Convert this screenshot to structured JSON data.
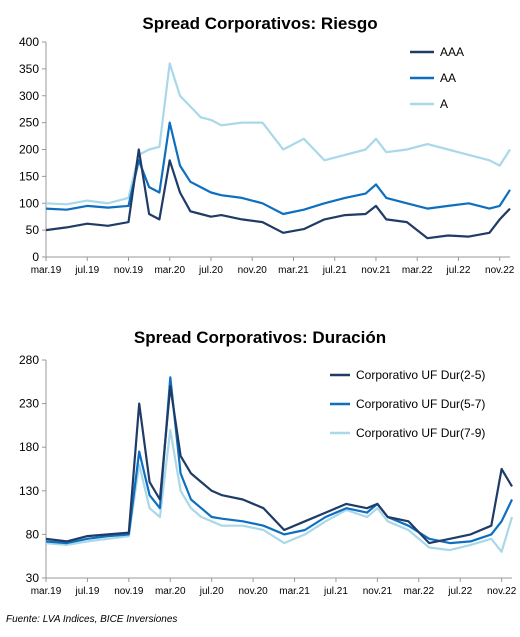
{
  "source_note": "Fuente: LVA Indices, BICE Inversiones",
  "colors": {
    "dark": "#1F3B66",
    "mid": "#0E6FC0",
    "light": "#A9D8E9"
  },
  "chart_data": [
    {
      "type": "line",
      "title": "Spread Corporativos: Riesgo",
      "xlabel": "",
      "ylabel": "",
      "ylim": [
        0,
        400
      ],
      "yticks": [
        0,
        50,
        100,
        150,
        200,
        250,
        300,
        350,
        400
      ],
      "xlim": [
        "2019-03",
        "2022-12"
      ],
      "x_tick_labels": [
        "mar.19",
        "jul.19",
        "nov.19",
        "mar.20",
        "jul.20",
        "nov.20",
        "mar.21",
        "jul.21",
        "nov.21",
        "mar.22",
        "jul.22",
        "nov.22"
      ],
      "legend": "top-right",
      "grid": false,
      "x": [
        "2019-03",
        "2019-05",
        "2019-07",
        "2019-09",
        "2019-11",
        "2019-12",
        "2020-01",
        "2020-02",
        "2020-03",
        "2020-04",
        "2020-05",
        "2020-06",
        "2020-07",
        "2020-08",
        "2020-10",
        "2020-12",
        "2021-02",
        "2021-04",
        "2021-06",
        "2021-08",
        "2021-10",
        "2021-11",
        "2021-12",
        "2022-02",
        "2022-04",
        "2022-06",
        "2022-08",
        "2022-10",
        "2022-11",
        "2022-12"
      ],
      "series": [
        {
          "name": "AAA",
          "color": "#1F3B66",
          "values": [
            50,
            55,
            62,
            58,
            65,
            200,
            80,
            70,
            180,
            120,
            85,
            80,
            75,
            78,
            70,
            65,
            45,
            52,
            70,
            78,
            80,
            95,
            70,
            65,
            35,
            40,
            38,
            45,
            70,
            90
          ]
        },
        {
          "name": "AA",
          "color": "#0E6FC0",
          "values": [
            90,
            88,
            95,
            92,
            95,
            180,
            130,
            120,
            250,
            170,
            140,
            130,
            120,
            115,
            110,
            100,
            80,
            88,
            100,
            110,
            118,
            135,
            110,
            100,
            90,
            95,
            100,
            90,
            95,
            125
          ]
        },
        {
          "name": "A",
          "color": "#A9D8E9",
          "values": [
            100,
            98,
            105,
            100,
            110,
            190,
            200,
            205,
            360,
            300,
            280,
            260,
            255,
            245,
            250,
            250,
            200,
            220,
            180,
            190,
            200,
            220,
            195,
            200,
            210,
            200,
            190,
            180,
            170,
            200
          ]
        }
      ]
    },
    {
      "type": "line",
      "title": "Spread Corporativos: Duración",
      "xlabel": "",
      "ylabel": "",
      "ylim": [
        30,
        280
      ],
      "yticks": [
        30,
        80,
        130,
        180,
        230,
        280
      ],
      "xlim": [
        "2019-03",
        "2022-12"
      ],
      "x_tick_labels": [
        "mar.19",
        "jul.19",
        "nov.19",
        "mar.20",
        "jul.20",
        "nov.20",
        "mar.21",
        "jul.21",
        "nov.21",
        "mar.22",
        "jul.22",
        "nov.22"
      ],
      "legend": "top-right",
      "grid": false,
      "x": [
        "2019-03",
        "2019-05",
        "2019-07",
        "2019-09",
        "2019-11",
        "2019-12",
        "2020-01",
        "2020-02",
        "2020-03",
        "2020-04",
        "2020-05",
        "2020-06",
        "2020-07",
        "2020-08",
        "2020-10",
        "2020-12",
        "2021-02",
        "2021-04",
        "2021-06",
        "2021-08",
        "2021-10",
        "2021-11",
        "2021-12",
        "2022-02",
        "2022-04",
        "2022-06",
        "2022-08",
        "2022-10",
        "2022-11",
        "2022-12"
      ],
      "series": [
        {
          "name": "Corporativo UF Dur(2-5)",
          "color": "#1F3B66",
          "values": [
            75,
            72,
            78,
            80,
            82,
            230,
            140,
            120,
            250,
            170,
            150,
            140,
            130,
            125,
            120,
            110,
            85,
            95,
            105,
            115,
            110,
            115,
            100,
            95,
            70,
            75,
            80,
            90,
            155,
            135
          ]
        },
        {
          "name": "Corporativo UF Dur(5-7)",
          "color": "#0E6FC0",
          "values": [
            72,
            70,
            75,
            78,
            80,
            175,
            125,
            110,
            260,
            150,
            120,
            110,
            100,
            98,
            95,
            90,
            80,
            85,
            100,
            110,
            105,
            115,
            100,
            90,
            75,
            70,
            72,
            80,
            95,
            120
          ]
        },
        {
          "name": "Corporativo UF Dur(7-9)",
          "color": "#A9D8E9",
          "values": [
            70,
            68,
            72,
            75,
            78,
            160,
            110,
            100,
            200,
            130,
            110,
            100,
            95,
            90,
            90,
            85,
            70,
            80,
            95,
            108,
            100,
            110,
            95,
            85,
            65,
            62,
            68,
            75,
            60,
            100
          ]
        }
      ]
    }
  ]
}
